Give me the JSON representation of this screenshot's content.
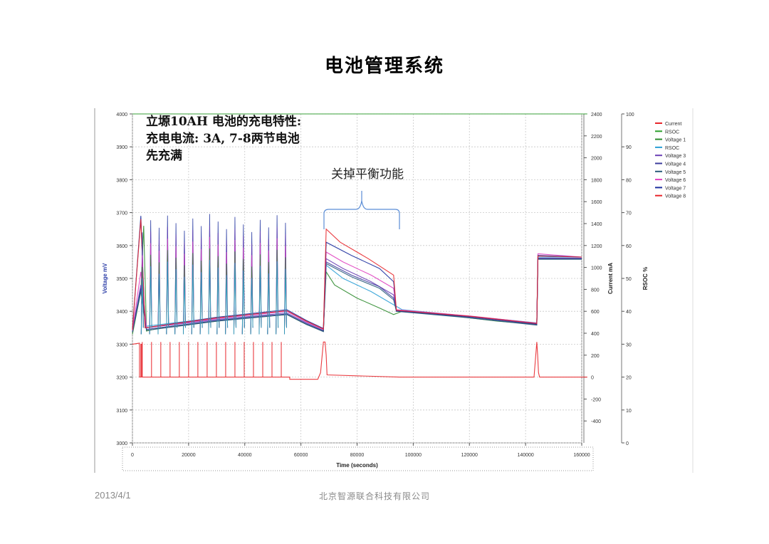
{
  "slide": {
    "title": "电池管理系统",
    "footer_date": "2013/4/1",
    "footer_company": "北京智源联合科技有限公司"
  },
  "chart_data": {
    "type": "line",
    "title_lines": [
      {
        "text": "立塬10AH 电池的充电特性:"
      },
      {
        "text": "充电电流: 3A, 7-8两节电池"
      },
      {
        "text": "先充满"
      }
    ],
    "annotation": "关掉平衡功能",
    "xlabel": "Time (seconds)",
    "ylabel_left": "Voltage mV",
    "ylabel_current": "Current mA",
    "ylabel_rsoc": "RSOC %",
    "xlim": [
      0,
      160000
    ],
    "ylim_voltage": [
      3000,
      4000
    ],
    "ylim_current": [
      -600,
      2400
    ],
    "ylim_rsoc": [
      0,
      100
    ],
    "x_ticks": [
      "0",
      "20000",
      "40000",
      "60000",
      "80000",
      "100000",
      "120000",
      "140000",
      "160000"
    ],
    "y_ticks_voltage": [
      "4000",
      "3900",
      "3800",
      "3700",
      "3600",
      "3500",
      "3400",
      "3300",
      "3200",
      "3100",
      "3000"
    ],
    "y_ticks_current": [
      "2400",
      "2200",
      "2000",
      "1800",
      "1600",
      "1400",
      "1200",
      "1000",
      "800",
      "600",
      "400",
      "200",
      "0",
      "-200",
      "-400"
    ],
    "y_ticks_rsoc": [
      "100",
      "90",
      "80",
      "70",
      "60",
      "50",
      "40",
      "30",
      "20",
      "10",
      "0"
    ],
    "grid": true,
    "legend_position": "top-right",
    "series": [
      {
        "name": "Current",
        "color": "#e8262b",
        "axis": "current",
        "points": [
          [
            0,
            300
          ],
          [
            2500,
            310
          ],
          [
            2500,
            0
          ],
          [
            3000,
            0
          ],
          [
            3000,
            300
          ],
          [
            3300,
            300
          ],
          [
            3300,
            0
          ],
          [
            56000,
            0
          ],
          [
            56000,
            -20
          ],
          [
            66000,
            -20
          ],
          [
            67000,
            40
          ],
          [
            68000,
            320
          ],
          [
            68600,
            320
          ],
          [
            69000,
            200
          ],
          [
            69300,
            20
          ],
          [
            95000,
            0
          ],
          [
            143000,
            0
          ],
          [
            144000,
            320
          ],
          [
            144300,
            200
          ],
          [
            144600,
            40
          ],
          [
            145000,
            0
          ],
          [
            162000,
            0
          ]
        ]
      },
      {
        "name": "RSOC",
        "color": "#2ca02c",
        "axis": "rsoc",
        "points": [
          [
            0,
            100
          ],
          [
            162000,
            100
          ]
        ]
      },
      {
        "name": "Voltage 1",
        "color": "#2e8b2e",
        "axis": "voltage",
        "points": [
          [
            0,
            3330
          ],
          [
            3000,
            3460
          ],
          [
            4000,
            3660
          ],
          [
            5000,
            3340
          ],
          [
            10000,
            3350
          ],
          [
            20000,
            3360
          ],
          [
            30000,
            3370
          ],
          [
            40000,
            3380
          ],
          [
            55000,
            3390
          ],
          [
            62000,
            3360
          ],
          [
            68000,
            3340
          ],
          [
            69000,
            3520
          ],
          [
            72000,
            3480
          ],
          [
            80000,
            3440
          ],
          [
            88000,
            3410
          ],
          [
            93000,
            3390
          ],
          [
            96000,
            3400
          ],
          [
            110000,
            3390
          ],
          [
            130000,
            3370
          ],
          [
            144000,
            3360
          ],
          [
            144400,
            3560
          ],
          [
            146000,
            3560
          ],
          [
            160000,
            3560
          ]
        ]
      },
      {
        "name": "RSOC",
        "color": "#2a9fd6",
        "axis": "voltage",
        "points": [
          [
            0,
            3345
          ],
          [
            3000,
            3470
          ],
          [
            5000,
            3355
          ],
          [
            30000,
            3380
          ],
          [
            55000,
            3400
          ],
          [
            62000,
            3370
          ],
          [
            68000,
            3345
          ],
          [
            69000,
            3540
          ],
          [
            75000,
            3500
          ],
          [
            85000,
            3460
          ],
          [
            93000,
            3420
          ],
          [
            96000,
            3405
          ],
          [
            120000,
            3385
          ],
          [
            144000,
            3365
          ],
          [
            144400,
            3565
          ],
          [
            160000,
            3565
          ]
        ]
      },
      {
        "name": "Voltage 3",
        "color": "#6a3fb5",
        "axis": "voltage",
        "points": [
          [
            0,
            3340
          ],
          [
            3000,
            3480
          ],
          [
            5000,
            3350
          ],
          [
            30000,
            3375
          ],
          [
            55000,
            3395
          ],
          [
            62000,
            3365
          ],
          [
            68000,
            3342
          ],
          [
            69000,
            3560
          ],
          [
            75000,
            3530
          ],
          [
            85000,
            3490
          ],
          [
            93000,
            3450
          ],
          [
            94000,
            3400
          ],
          [
            120000,
            3385
          ],
          [
            144000,
            3362
          ],
          [
            144400,
            3562
          ],
          [
            160000,
            3562
          ]
        ]
      },
      {
        "name": "Voltage 4",
        "color": "#3c3c9c",
        "axis": "voltage",
        "points": [
          [
            0,
            3338
          ],
          [
            3000,
            3470
          ],
          [
            5000,
            3345
          ],
          [
            30000,
            3372
          ],
          [
            55000,
            3392
          ],
          [
            62000,
            3362
          ],
          [
            68000,
            3340
          ],
          [
            69000,
            3550
          ],
          [
            78000,
            3510
          ],
          [
            88000,
            3475
          ],
          [
            93000,
            3440
          ],
          [
            94000,
            3402
          ],
          [
            120000,
            3382
          ],
          [
            144000,
            3360
          ],
          [
            144400,
            3560
          ],
          [
            160000,
            3560
          ]
        ]
      },
      {
        "name": "Voltage 5",
        "color": "#2a5a7a",
        "axis": "voltage",
        "points": [
          [
            0,
            3336
          ],
          [
            3000,
            3460
          ],
          [
            5000,
            3342
          ],
          [
            30000,
            3370
          ],
          [
            55000,
            3390
          ],
          [
            62000,
            3360
          ],
          [
            68000,
            3338
          ],
          [
            69000,
            3545
          ],
          [
            78000,
            3505
          ],
          [
            88000,
            3470
          ],
          [
            93000,
            3435
          ],
          [
            94000,
            3400
          ],
          [
            120000,
            3380
          ],
          [
            144000,
            3358
          ],
          [
            144400,
            3558
          ],
          [
            160000,
            3558
          ]
        ]
      },
      {
        "name": "Voltage 6",
        "color": "#e040c0",
        "axis": "voltage",
        "points": [
          [
            0,
            3342
          ],
          [
            3000,
            3520
          ],
          [
            5000,
            3350
          ],
          [
            30000,
            3378
          ],
          [
            55000,
            3400
          ],
          [
            62000,
            3368
          ],
          [
            68000,
            3345
          ],
          [
            69000,
            3580
          ],
          [
            75000,
            3550
          ],
          [
            85000,
            3510
          ],
          [
            93000,
            3470
          ],
          [
            94000,
            3405
          ],
          [
            120000,
            3386
          ],
          [
            144000,
            3364
          ],
          [
            144400,
            3575
          ],
          [
            160000,
            3565
          ]
        ]
      },
      {
        "name": "Voltage 7",
        "color": "#1c2f9e",
        "axis": "voltage",
        "points": [
          [
            0,
            3345
          ],
          [
            3000,
            3690
          ],
          [
            4500,
            3350
          ],
          [
            30000,
            3382
          ],
          [
            55000,
            3405
          ],
          [
            62000,
            3372
          ],
          [
            68000,
            3348
          ],
          [
            69000,
            3610
          ],
          [
            78000,
            3570
          ],
          [
            88000,
            3530
          ],
          [
            93000,
            3490
          ],
          [
            94000,
            3402
          ],
          [
            120000,
            3384
          ],
          [
            144000,
            3362
          ],
          [
            144400,
            3570
          ],
          [
            160000,
            3565
          ]
        ]
      },
      {
        "name": "Voltage 8",
        "color": "#e8262b",
        "axis": "voltage",
        "points": [
          [
            0,
            3344
          ],
          [
            3000,
            3680
          ],
          [
            4500,
            3350
          ],
          [
            30000,
            3380
          ],
          [
            55000,
            3402
          ],
          [
            62000,
            3370
          ],
          [
            68000,
            3346
          ],
          [
            69000,
            3650
          ],
          [
            74000,
            3610
          ],
          [
            84000,
            3560
          ],
          [
            93000,
            3510
          ],
          [
            94000,
            3403
          ],
          [
            120000,
            3385
          ],
          [
            144000,
            3363
          ],
          [
            144400,
            3568
          ],
          [
            160000,
            3565
          ]
        ]
      }
    ]
  }
}
